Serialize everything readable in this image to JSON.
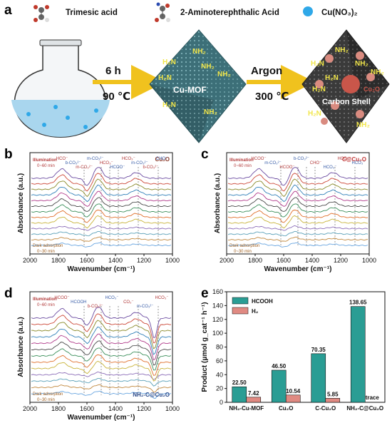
{
  "panel_labels": {
    "a": "a",
    "b": "b",
    "c": "c",
    "d": "d",
    "e": "e"
  },
  "synthesis": {
    "reagents": [
      {
        "label": "Trimesic acid",
        "icon": "trimesic-acid-molecule-icon"
      },
      {
        "label": "2-Aminoterephthalic Acid",
        "icon": "aminoterephthalic-molecule-icon"
      },
      {
        "label": "Cu(NO₃)₂",
        "icon": "cu-nitrate-sphere-icon"
      }
    ],
    "step1": {
      "time": "6 h",
      "temperature": "90 ℃"
    },
    "mof_label": "Cu-MOF",
    "step2": {
      "gas": "Argon",
      "temperature": "300 ℃"
    },
    "product_labels": {
      "shell": "Carbon Shell",
      "core": "Cu₂O"
    },
    "amine": "NH₂",
    "amine_flipped": "H₂N",
    "colors": {
      "arrow": "#f0c21e",
      "mof": "#3d6f78",
      "carbonized": "#3a3a3a",
      "spheres": "#2fa8e8"
    }
  },
  "spectra": {
    "xlabel": "Wavenumber (cm⁻¹)",
    "ylabel": "Absorbance (a.u.)",
    "ticks": [
      "2000",
      "1800",
      "1600",
      "1400",
      "1200",
      "1000"
    ],
    "illumination": "Illumination",
    "illum_time": "0~60 min",
    "dark": "Dark adsorption",
    "dark_time": "0~30 min",
    "panels": [
      {
        "id": "b",
        "sample": "Cu₂O",
        "annotations": [
          "HCO⁻",
          "b-CO₃²⁻",
          "m-CO₃²⁻",
          "m-CO₃²⁻",
          "HCO₃⁻",
          "HCOO⁻",
          "HCO₃⁻",
          "m-CO₃²⁻",
          "b-CO₃²⁻",
          "CHO⁻"
        ]
      },
      {
        "id": "c",
        "sample": "C@Cu₂O",
        "annotations": [
          "HCOO⁻",
          "m-CO₃²⁻",
          "HCOO⁻",
          "b-CO₃²⁻",
          "CHO⁻",
          "HCO₃⁻",
          "HCO₃⁻",
          "HCO₃⁻"
        ]
      },
      {
        "id": "d",
        "sample": "NH₂-C@Cu₂O",
        "annotations": [
          "HCOO⁻",
          "HCOOH",
          "b-CO₃²⁻",
          "HCO₃⁻",
          "CO₂⁻",
          "m-CO₃²⁻",
          "HCO₃⁻"
        ]
      }
    ]
  },
  "chart_data": {
    "type": "bar",
    "categories": [
      "NH₂-Cu-MOF",
      "Cu₂O",
      "C-Cu₂O",
      "NH₂-C@Cu₂O"
    ],
    "series": [
      {
        "name": "HCOOH",
        "values": [
          22.5,
          46.5,
          70.35,
          138.65
        ],
        "labels": [
          "22.50",
          "46.50",
          "70.35",
          "138.65"
        ],
        "color": "#2a9d94"
      },
      {
        "name": "H₂",
        "values": [
          7.42,
          10.54,
          5.85,
          0
        ],
        "labels": [
          "7.42",
          "10.54",
          "5.85",
          "trace"
        ],
        "color": "#e08a82"
      }
    ],
    "ylabel": "Product (μmol g_cat⁻¹ h⁻¹)",
    "ylim": [
      0,
      160
    ],
    "yticks": [
      "0",
      "20",
      "40",
      "60",
      "80",
      "100",
      "120",
      "140",
      "160"
    ],
    "legend_position": "top-left"
  }
}
